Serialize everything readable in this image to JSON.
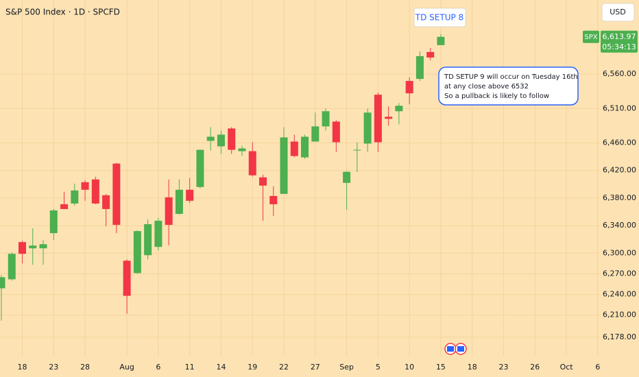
{
  "chart_data": {
    "type": "candlestick",
    "title": "S&P 500 Index · 1D · SPCFD",
    "currency": "USD",
    "symbol_badge": "SPX",
    "last_price": {
      "value": 6613.97,
      "label": "6,613.97"
    },
    "countdown": "05:34:13",
    "annotations": {
      "callout": "TD SETUP 8",
      "note": [
        "TD SETUP 9 will occur on Tuesday 16th",
        "at any close above 6532",
        "So a pullback is likely to follow"
      ]
    },
    "up_color": "#4caf50",
    "down_color": "#f23645",
    "x": [
      0,
      1,
      2,
      3,
      4,
      5,
      6,
      7,
      8,
      9,
      10,
      11,
      12,
      13,
      14,
      15,
      16,
      17,
      18,
      19,
      20,
      21,
      22,
      23,
      24,
      25,
      26,
      27,
      28,
      29,
      30,
      31,
      32,
      33,
      34,
      35,
      36,
      37,
      38,
      39,
      40,
      41,
      42
    ],
    "open": [
      6249,
      6262,
      6316,
      6307,
      6307,
      6329,
      6371,
      6372,
      6403,
      6407,
      6384,
      6430,
      6289,
      6271,
      6297,
      6309,
      6381,
      6357,
      6392,
      6396,
      6463,
      6455,
      6481,
      6448,
      6448,
      6410,
      6383,
      6386,
      6462,
      6439,
      6462,
      6484,
      6491,
      6402,
      6449,
      6459,
      6530,
      6498,
      6506,
      6550,
      6553,
      6592,
      6602
    ],
    "high": [
      6268,
      6301,
      6318,
      6336,
      6319,
      6364,
      6389,
      6401,
      6406,
      6411,
      6386,
      6431,
      6291,
      6333,
      6349,
      6351,
      6407,
      6407,
      6409,
      6450,
      6483,
      6478,
      6483,
      6456,
      6461,
      6414,
      6397,
      6483,
      6472,
      6472,
      6504,
      6510,
      6493,
      6419,
      6461,
      6510,
      6533,
      6513,
      6518,
      6555,
      6593,
      6598,
      6618
    ],
    "low": [
      6202,
      6260,
      6285,
      6283,
      6283,
      6319,
      6364,
      6369,
      6376,
      6371,
      6339,
      6329,
      6212,
      6270,
      6291,
      6304,
      6311,
      6356,
      6373,
      6394,
      6449,
      6444,
      6444,
      6441,
      6411,
      6347,
      6354,
      6386,
      6439,
      6437,
      6462,
      6478,
      6447,
      6363,
      6418,
      6447,
      6447,
      6485,
      6487,
      6516,
      6550,
      6580,
      6602
    ],
    "close": [
      6265,
      6299,
      6299,
      6311,
      6313,
      6362,
      6364,
      6391,
      6392,
      6372,
      6364,
      6341,
      6238,
      6332,
      6342,
      6347,
      6341,
      6392,
      6376,
      6450,
      6469,
      6472,
      6450,
      6452,
      6413,
      6398,
      6371,
      6468,
      6441,
      6469,
      6484,
      6506,
      6461,
      6418,
      6450,
      6504,
      6461,
      6495,
      6514,
      6532,
      6586,
      6584,
      6614
    ],
    "xlim": [
      -0.13,
      57.14
    ],
    "xticks": [
      {
        "value": 2,
        "label": "18"
      },
      {
        "value": 5,
        "label": "23"
      },
      {
        "value": 8,
        "label": "28"
      },
      {
        "value": 12,
        "label": "Aug"
      },
      {
        "value": 15,
        "label": "6"
      },
      {
        "value": 18,
        "label": "11"
      },
      {
        "value": 21,
        "label": "14"
      },
      {
        "value": 24,
        "label": "19"
      },
      {
        "value": 27,
        "label": "22"
      },
      {
        "value": 30,
        "label": "27"
      },
      {
        "value": 33,
        "label": "Sep"
      },
      {
        "value": 36,
        "label": "5"
      },
      {
        "value": 39,
        "label": "10"
      },
      {
        "value": 42,
        "label": "15"
      },
      {
        "value": 45,
        "label": "18"
      },
      {
        "value": 48,
        "label": "23"
      },
      {
        "value": 51,
        "label": "26"
      },
      {
        "value": 54,
        "label": "Oct"
      },
      {
        "value": 57,
        "label": "6"
      }
    ],
    "ylim": [
      6150,
      6667.5
    ],
    "yticks": [
      {
        "value": 6178,
        "label": "6,178.00"
      },
      {
        "value": 6210,
        "label": "6,210.00"
      },
      {
        "value": 6240,
        "label": "6,240.00"
      },
      {
        "value": 6270,
        "label": "6,270.00"
      },
      {
        "value": 6300,
        "label": "6,300.00"
      },
      {
        "value": 6340,
        "label": "6,340.00"
      },
      {
        "value": 6380,
        "label": "6,380.00"
      },
      {
        "value": 6420,
        "label": "6,420.00"
      },
      {
        "value": 6460,
        "label": "6,460.00"
      },
      {
        "value": 6510,
        "label": "6,510.00"
      },
      {
        "value": 6560,
        "label": "6,560.00"
      }
    ],
    "grid": true
  }
}
